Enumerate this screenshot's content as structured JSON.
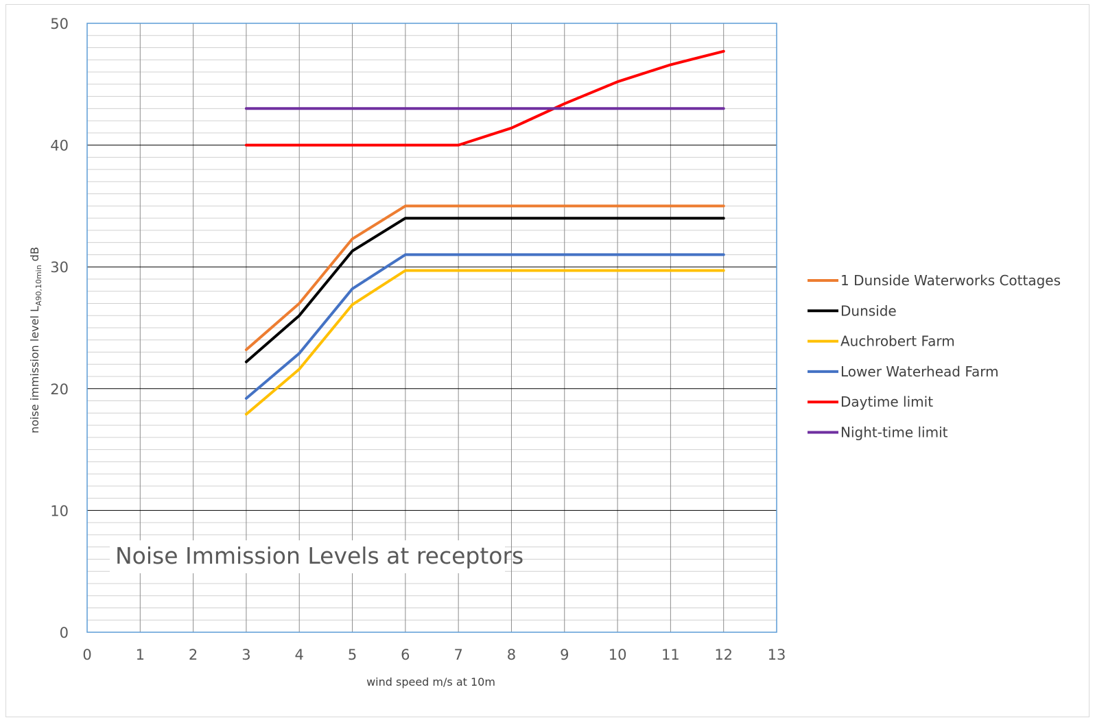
{
  "chart_data": {
    "type": "line",
    "title": "",
    "annotation": "Noise Immission Levels at receptors",
    "xlabel": "wind speed m/s at 10m",
    "ylabel_parts": {
      "main": "noise immission level L",
      "sub": "A90,10min",
      "suffix": " dB"
    },
    "xlim": [
      0,
      13
    ],
    "ylim": [
      0,
      50
    ],
    "x_ticks": [
      0,
      1,
      2,
      3,
      4,
      5,
      6,
      7,
      8,
      9,
      10,
      11,
      12,
      13
    ],
    "y_ticks": [
      0,
      10,
      20,
      30,
      40,
      50
    ],
    "grid": {
      "major_y": 10,
      "minor_y": 1,
      "major_x": 1
    },
    "legend_position": "right",
    "series": [
      {
        "name": "1 Dunside Waterworks Cottages",
        "color": "#ED7D31",
        "x": [
          3,
          4,
          5,
          6,
          7,
          8,
          9,
          10,
          11,
          12
        ],
        "y": [
          23.2,
          27.0,
          32.3,
          35.0,
          35.0,
          35.0,
          35.0,
          35.0,
          35.0,
          35.0
        ]
      },
      {
        "name": "Dunside",
        "color": "#000000",
        "x": [
          3,
          4,
          5,
          6,
          7,
          8,
          9,
          10,
          11,
          12
        ],
        "y": [
          22.2,
          26.0,
          31.3,
          34.0,
          34.0,
          34.0,
          34.0,
          34.0,
          34.0,
          34.0
        ]
      },
      {
        "name": "Auchrobert Farm",
        "color": "#FFC000",
        "x": [
          3,
          4,
          5,
          6,
          7,
          8,
          9,
          10,
          11,
          12
        ],
        "y": [
          17.9,
          21.6,
          26.9,
          29.7,
          29.7,
          29.7,
          29.7,
          29.7,
          29.7,
          29.7
        ]
      },
      {
        "name": "Lower Waterhead Farm",
        "color": "#4472C4",
        "x": [
          3,
          4,
          5,
          6,
          7,
          8,
          9,
          10,
          11,
          12
        ],
        "y": [
          19.2,
          22.9,
          28.2,
          31.0,
          31.0,
          31.0,
          31.0,
          31.0,
          31.0,
          31.0
        ]
      },
      {
        "name": "Daytime limit",
        "color": "#FF0000",
        "x": [
          3,
          4,
          5,
          6,
          7,
          8,
          9,
          10,
          11,
          12
        ],
        "y": [
          40.0,
          40.0,
          40.0,
          40.0,
          40.0,
          41.4,
          43.4,
          45.2,
          46.6,
          47.7
        ]
      },
      {
        "name": "Night-time limit",
        "color": "#7030A0",
        "x": [
          3,
          4,
          5,
          6,
          7,
          8,
          9,
          10,
          11,
          12
        ],
        "y": [
          43.0,
          43.0,
          43.0,
          43.0,
          43.0,
          43.0,
          43.0,
          43.0,
          43.0,
          43.0
        ]
      }
    ]
  }
}
